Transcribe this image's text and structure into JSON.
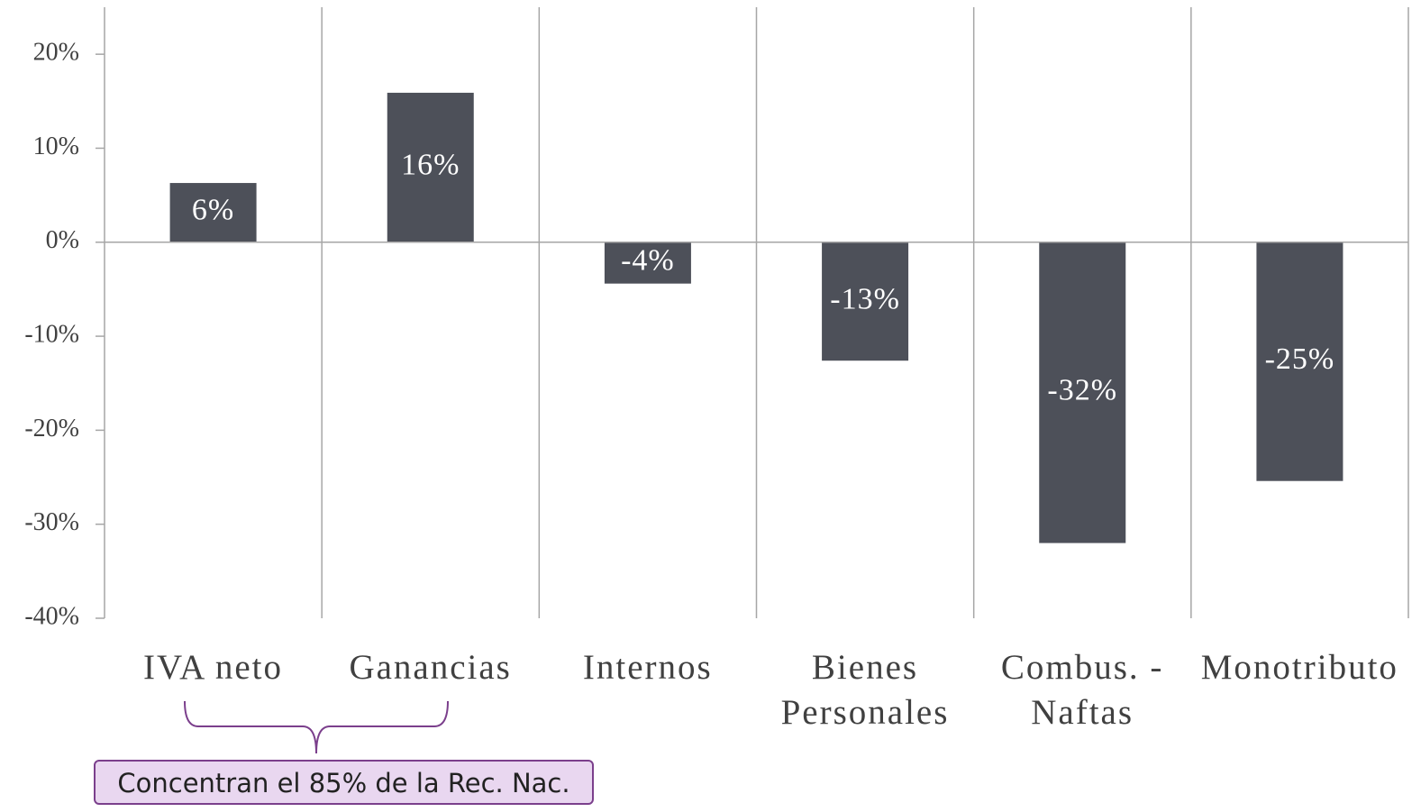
{
  "chart_data": {
    "type": "bar",
    "categories": [
      "IVA neto",
      "Ganancias",
      "Internos",
      "Bienes Personales",
      "Combus. - Naftas",
      "Monotributo"
    ],
    "values": [
      6.3,
      15.9,
      -4.4,
      -12.6,
      -32.0,
      -25.4
    ],
    "value_labels": [
      "6%",
      "16%",
      "-4%",
      "-13%",
      "-32%",
      "-25%"
    ],
    "color": "#4d5059",
    "ylim": [
      -40,
      25
    ],
    "yticks": [
      {
        "value": -40,
        "label": "-40%"
      },
      {
        "value": -30,
        "label": "-30%"
      },
      {
        "value": -20,
        "label": "-20%"
      },
      {
        "value": -10,
        "label": "-10%"
      },
      {
        "value": 0,
        "label": "0%"
      },
      {
        "value": 10,
        "label": "10%"
      },
      {
        "value": 20,
        "label": "20%"
      }
    ],
    "annotation": "Concentran el 85% de la Rec. Nac."
  }
}
